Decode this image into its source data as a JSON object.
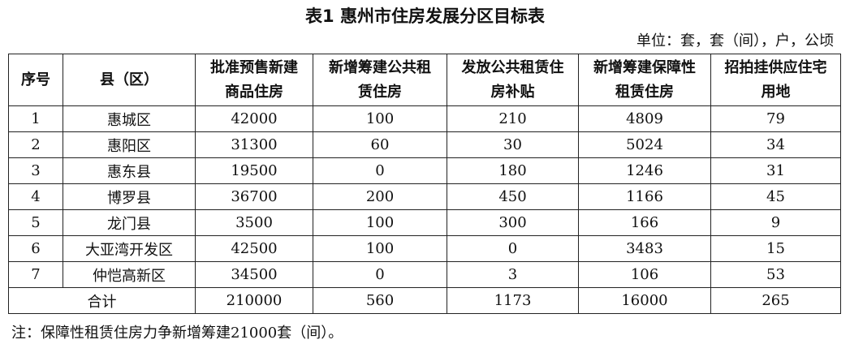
{
  "title": "表1  惠州市住房发展分区目标表",
  "unit": "单位：套，套（间），户，公顷",
  "headers": [
    "序号",
    "县（区）",
    "批准预售新建商品住房",
    "新增筹建公共租赁住房",
    "发放公共租赁住房补贴",
    "新增筹建保障性租赁住房",
    "招拍挂供应住宅用地"
  ],
  "headers_lines": [
    [
      "序号"
    ],
    [
      "县（区）"
    ],
    [
      "批准预售新建",
      "商品住房"
    ],
    [
      "新增筹建公共租",
      "赁住房"
    ],
    [
      "发放公共租赁住",
      "房补贴"
    ],
    [
      "新增筹建保障性",
      "租赁住房"
    ],
    [
      "招拍挂供应住宅",
      "用地"
    ]
  ],
  "rows": [
    [
      "1",
      "惠城区",
      "42000",
      "100",
      "210",
      "4809",
      "79"
    ],
    [
      "2",
      "惠阳区",
      "31300",
      "60",
      "30",
      "5024",
      "34"
    ],
    [
      "3",
      "惠东县",
      "19500",
      "0",
      "180",
      "1246",
      "31"
    ],
    [
      "4",
      "博罗县",
      "36700",
      "200",
      "450",
      "1166",
      "45"
    ],
    [
      "5",
      "龙门县",
      "3500",
      "100",
      "300",
      "166",
      "9"
    ],
    [
      "6",
      "大亚湾开发区",
      "42500",
      "100",
      "0",
      "3483",
      "15"
    ],
    [
      "7",
      "仲恺高新区",
      "34500",
      "0",
      "3",
      "106",
      "53"
    ]
  ],
  "total": [
    "合计",
    "210000",
    "560",
    "1173",
    "16000",
    "265"
  ],
  "note": "注：保障性租赁住房力争新增筹建21000套（间）。"
}
